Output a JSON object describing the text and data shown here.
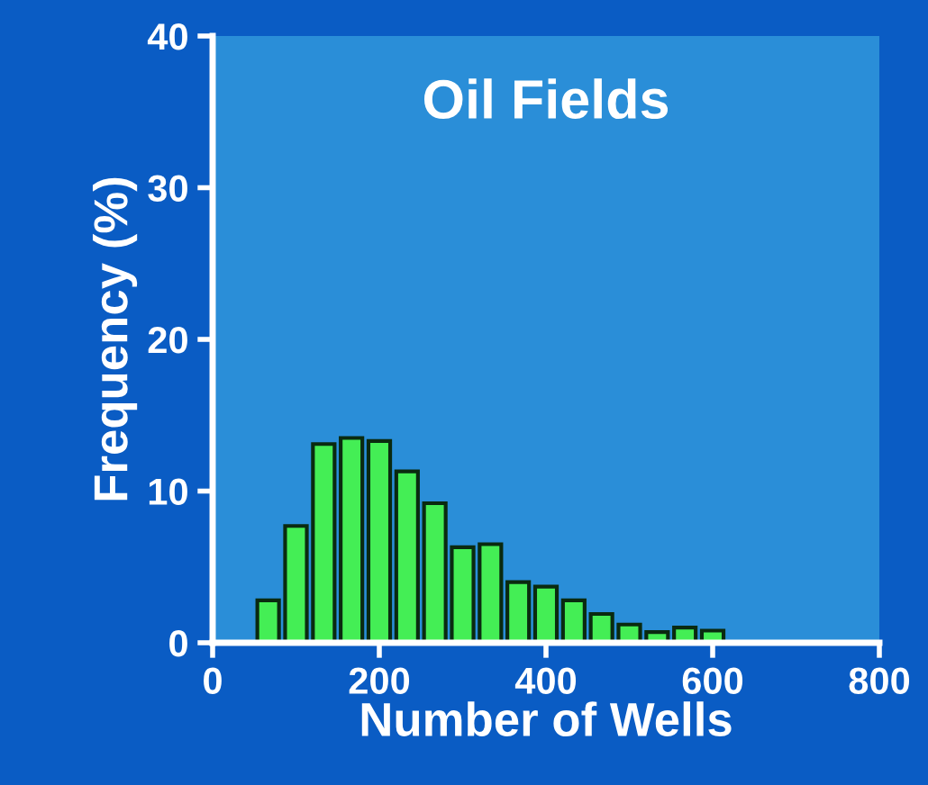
{
  "chart_data": {
    "type": "histogram",
    "title": "Oil Fields",
    "xlabel": "Number of Wells",
    "ylabel": "Frequency (%)",
    "bins": [
      50,
      83.3,
      116.7,
      150,
      183.3,
      216.7,
      250,
      283.3,
      316.7,
      350,
      383.3,
      416.7,
      450,
      483.3,
      516.7,
      550,
      583.3,
      616.7
    ],
    "values": [
      2.8,
      7.7,
      13.1,
      13.5,
      13.3,
      11.3,
      9.2,
      6.3,
      6.5,
      4.0,
      3.7,
      2.8,
      1.9,
      1.2,
      0.7,
      1.0,
      0.8
    ],
    "color": "#44ee55",
    "xlim": [
      0,
      800
    ],
    "xticks": [
      0,
      200,
      400,
      600,
      800
    ],
    "ylim": [
      0,
      40
    ],
    "yticks": [
      0,
      10,
      20,
      30,
      40
    ],
    "grid": false
  }
}
